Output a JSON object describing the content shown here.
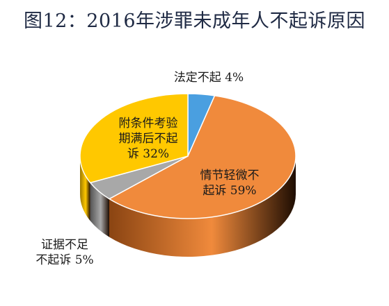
{
  "chart_data": {
    "type": "pie",
    "title": "图12：2016年涉罪未成年人不起诉原因",
    "slices": [
      {
        "label": "法定不起",
        "value": 4,
        "value_text": "4%",
        "color": "#4a9fe0",
        "side": "#2f6fa6"
      },
      {
        "label": "情节轻微不起诉",
        "value": 59,
        "value_text": "59%",
        "color": "#f08a3c",
        "side": "#8a4412"
      },
      {
        "label": "证据不足不起诉",
        "value": 5,
        "value_text": "5%",
        "color": "#a8a8a8",
        "side": "#555555"
      },
      {
        "label": "附条件考验期满后不起诉",
        "value": 32,
        "value_text": "32%",
        "color": "#ffc800",
        "side": "#9c7a00"
      }
    ],
    "label_lines": {
      "slice0": [
        "法定不起 4%"
      ],
      "slice1": [
        "情节轻微不",
        "起诉 59%"
      ],
      "slice2": [
        "证据不足",
        "不起诉 5%"
      ],
      "slice3": [
        "附条件考验",
        "期满后不起",
        "诉 32%"
      ]
    }
  }
}
